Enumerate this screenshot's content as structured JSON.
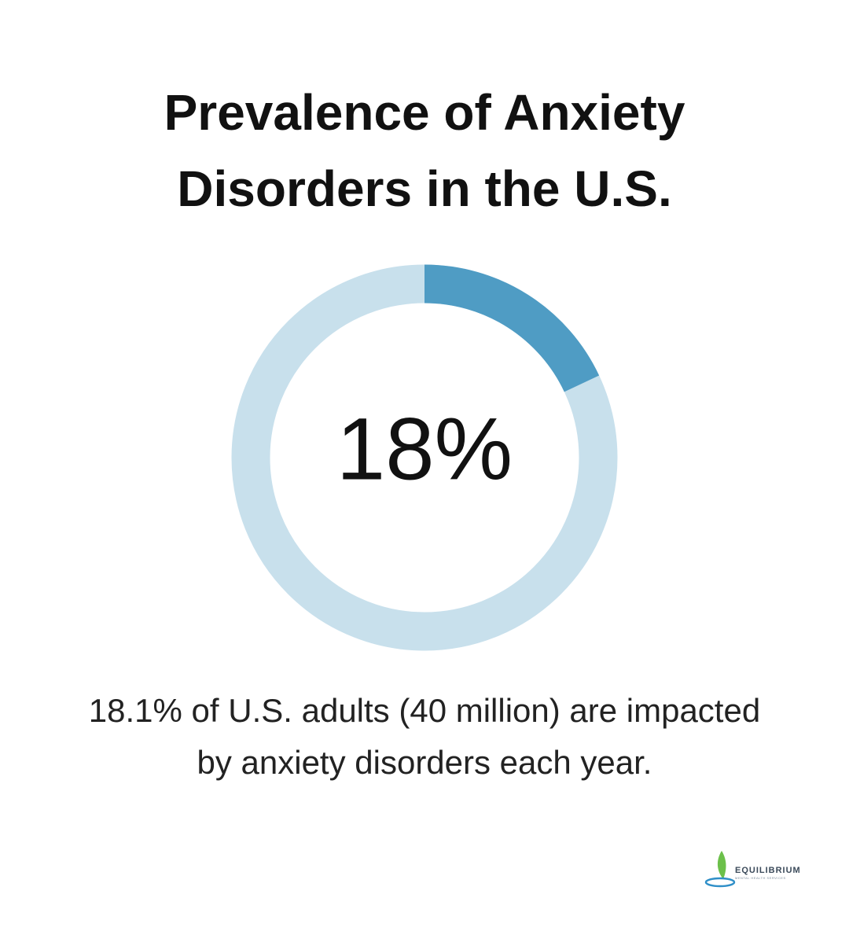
{
  "chart_data": {
    "type": "donut",
    "title": "Prevalence of Anxiety Disorders in the U.S.",
    "values": [
      18
    ],
    "value_labels": [
      "18%"
    ],
    "color": "#4f9cc4",
    "track_color": "#c8e0ec",
    "description": [
      "18.1% of U.S. adults (40 million) are impacted",
      "by anxiety disorders each year."
    ]
  },
  "logo": {
    "name": "EQUILIBRIUM",
    "tagline": "MENTAL HEALTH SERVICES"
  }
}
